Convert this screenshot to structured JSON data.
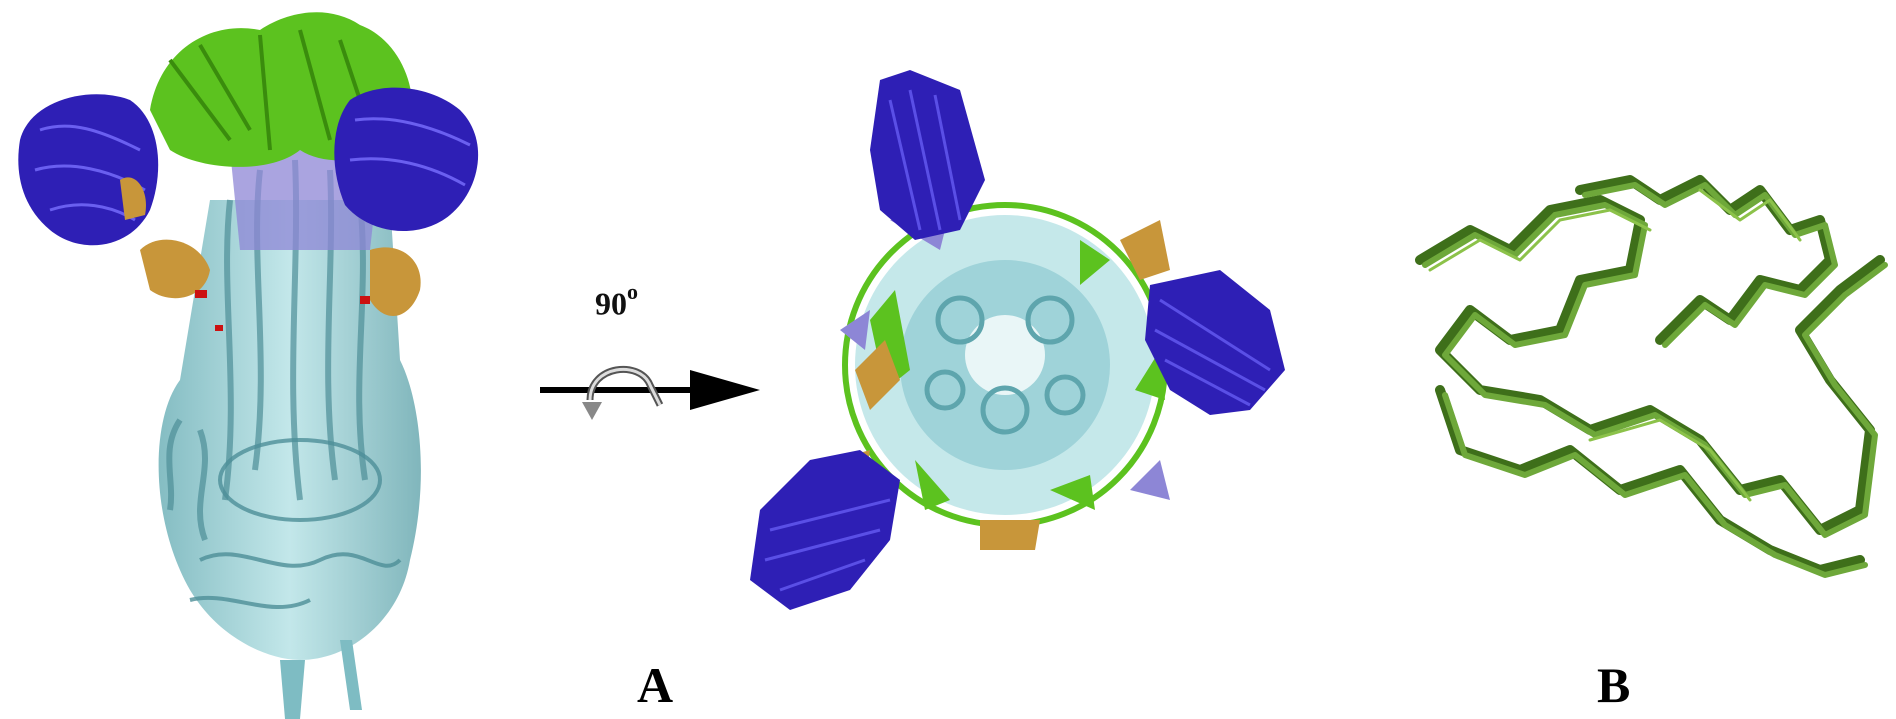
{
  "rotation": {
    "value": "90",
    "unit": "o"
  },
  "labels": {
    "panel_a": "A",
    "panel_b": "B"
  },
  "colors": {
    "helix_core": "#8fc9cf",
    "blue_domain": "#2e1fb5",
    "green_domain": "#5cc21f",
    "lavender": "#8d86d6",
    "orange_sheet": "#c8963a",
    "red_spot": "#cc1111",
    "olive_trace": "#4f8a24"
  }
}
